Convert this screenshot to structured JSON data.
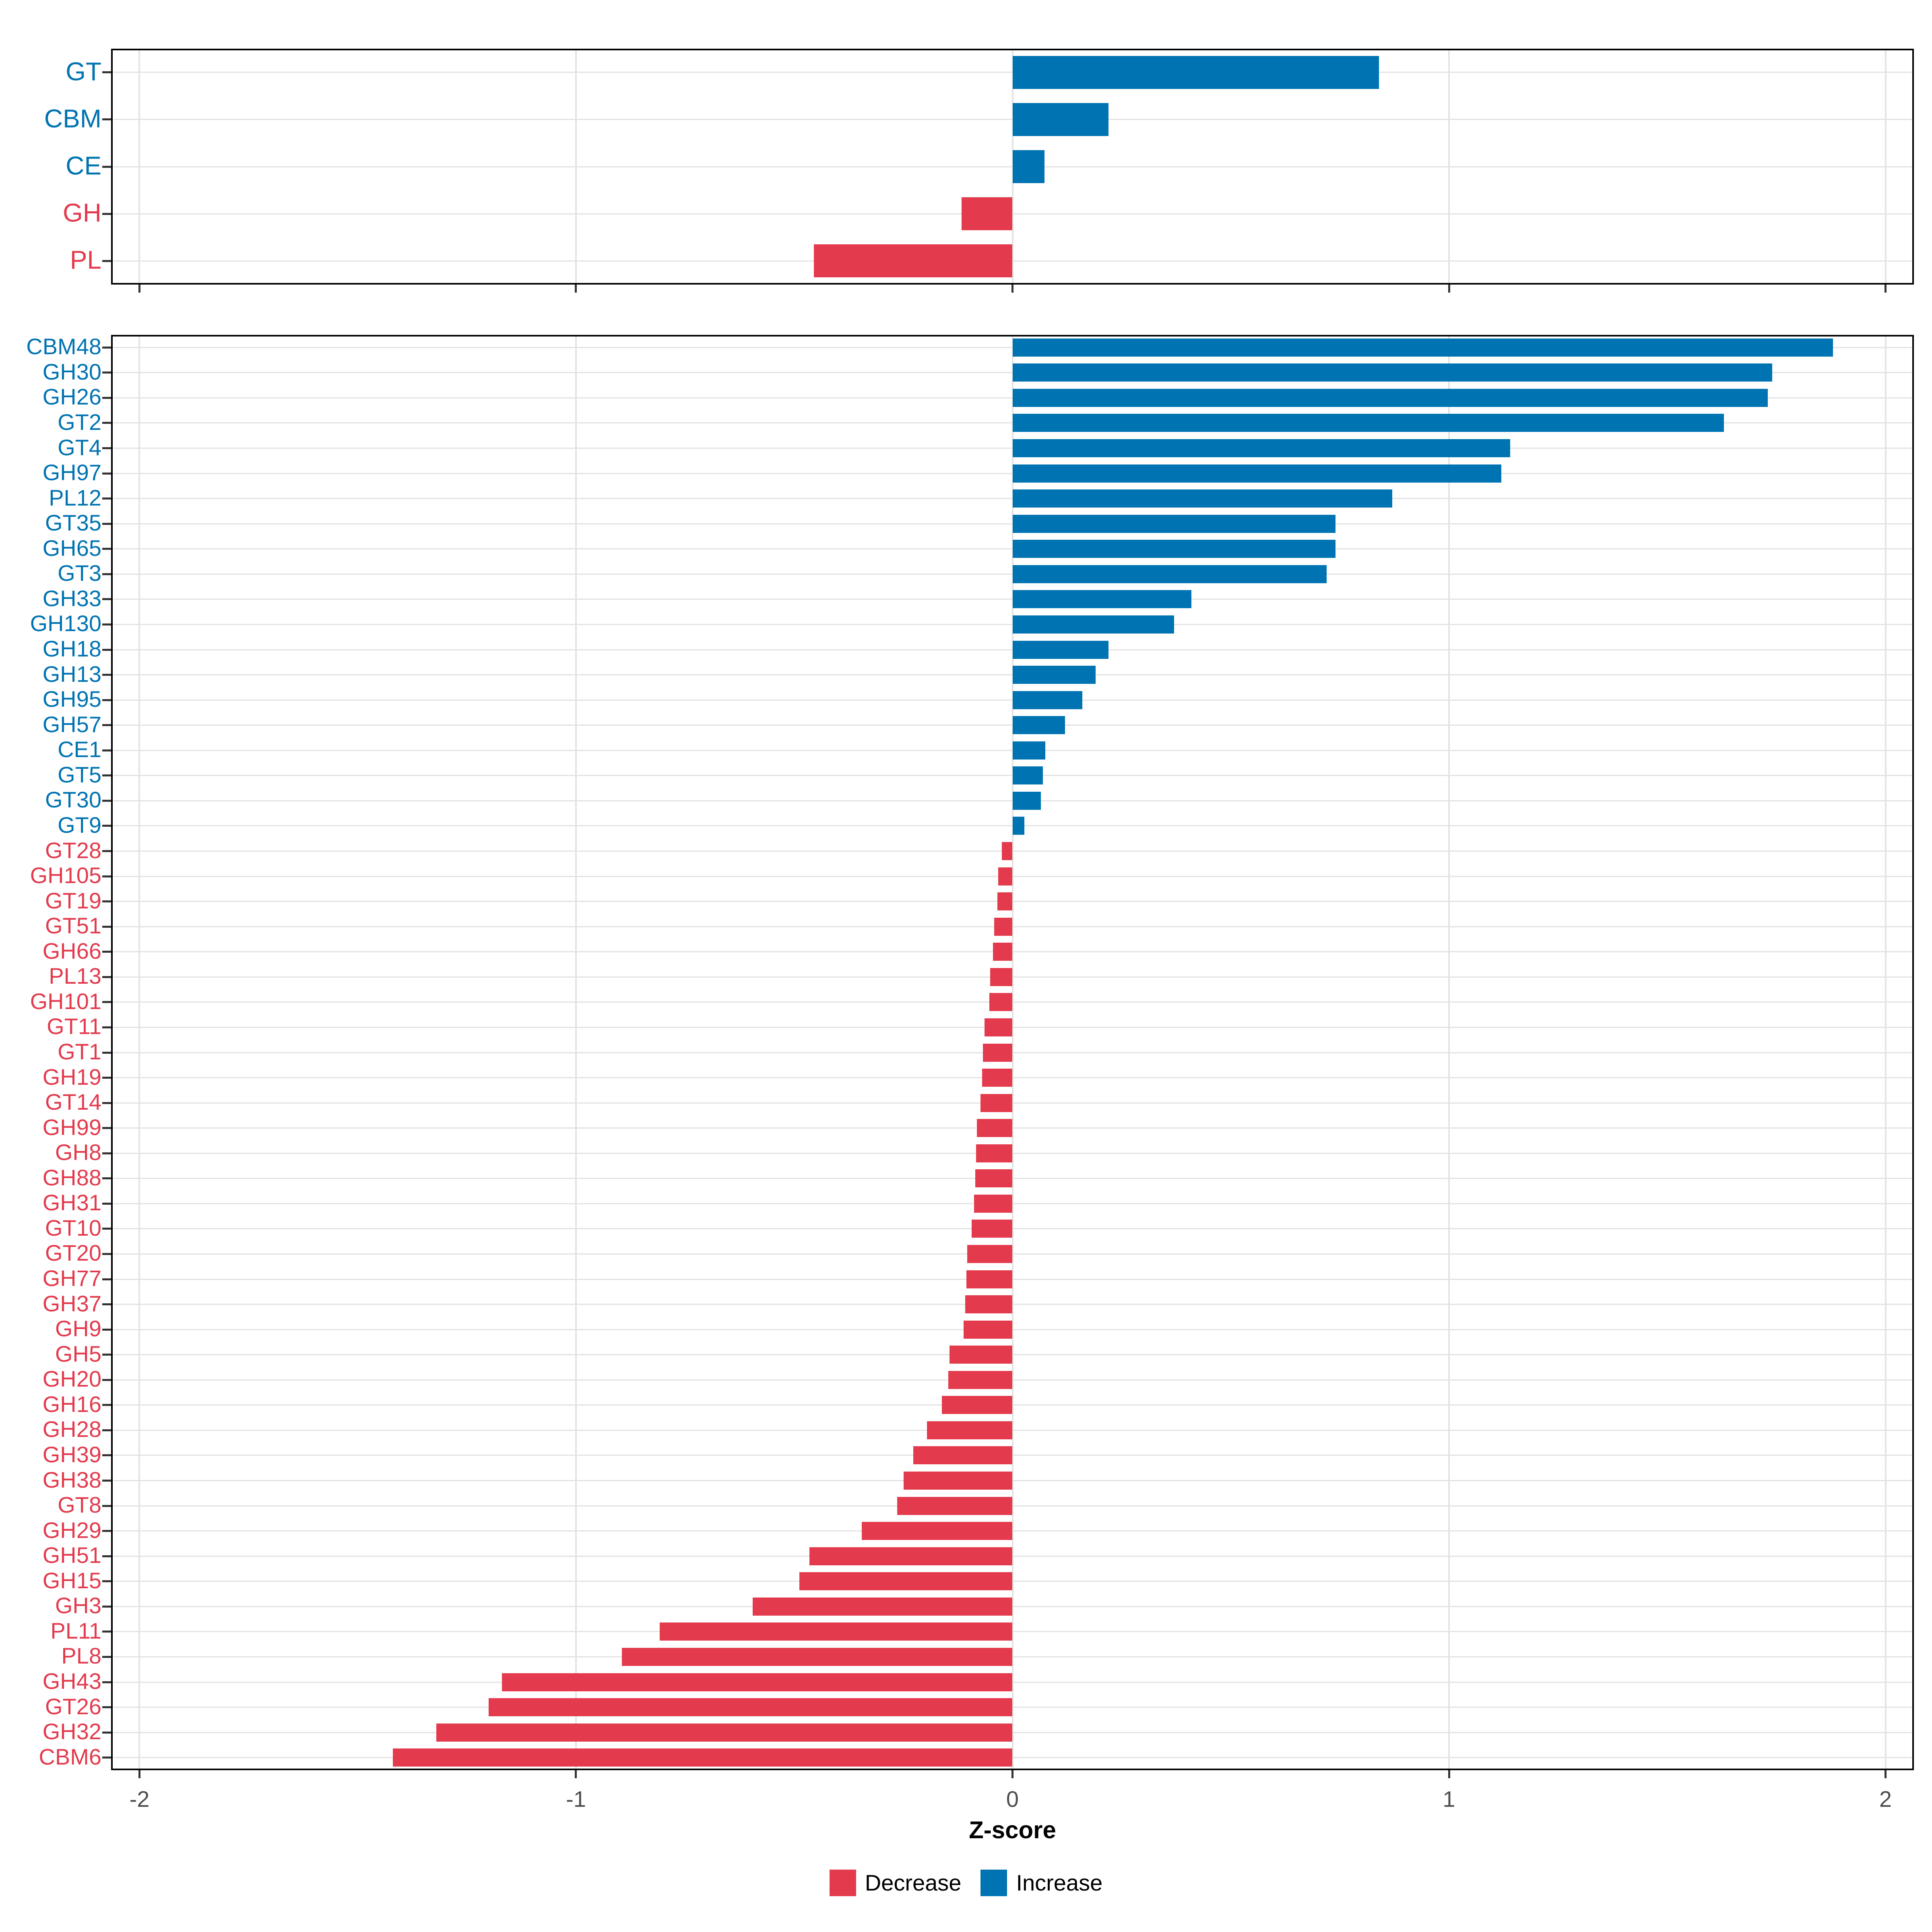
{
  "chart_data": {
    "type": "bar",
    "orientation": "horizontal",
    "title": "",
    "xlabel": "Z-score",
    "ylabel": "",
    "x_ticks": [
      -2,
      -1,
      0,
      1,
      2
    ],
    "x_tick_labels": [
      "-2",
      "-1",
      "0",
      "1",
      "2"
    ],
    "x_range": [
      -2.065,
      2.065
    ],
    "grid": true,
    "legend_position": "bottom",
    "legend": [
      {
        "label": "Decrease",
        "color": "#E33B4D"
      },
      {
        "label": "Increase",
        "color": "#0073B2"
      }
    ],
    "panels": [
      {
        "name": "cazyme-class-summary",
        "categories": [
          "GT",
          "CBM",
          "CE",
          "GH",
          "PL"
        ],
        "values": [
          0.84,
          0.22,
          0.073,
          -0.117,
          -0.455
        ]
      },
      {
        "name": "cazyme-family-detail",
        "categories": [
          "CBM48",
          "GH30",
          "GH26",
          "GT2",
          "GT4",
          "GH97",
          "PL12",
          "GT35",
          "GH65",
          "GT3",
          "GH33",
          "GH130",
          "GH18",
          "GH13",
          "GH95",
          "GH57",
          "CE1",
          "GT5",
          "GT30",
          "GT9",
          "GT28",
          "GH105",
          "GT19",
          "GT51",
          "GH66",
          "PL13",
          "GH101",
          "GT11",
          "GT1",
          "GH19",
          "GT14",
          "GH99",
          "GH8",
          "GH88",
          "GH31",
          "GT10",
          "GT20",
          "GH77",
          "GH37",
          "GH9",
          "GH5",
          "GH20",
          "GH16",
          "GH28",
          "GH39",
          "GH38",
          "GT8",
          "GH29",
          "GH51",
          "GH15",
          "GH3",
          "PL11",
          "PL8",
          "GH43",
          "GT26",
          "GH32",
          "CBM6"
        ],
        "values": [
          1.88,
          1.74,
          1.73,
          1.63,
          1.14,
          1.12,
          0.87,
          0.74,
          0.74,
          0.72,
          0.41,
          0.37,
          0.22,
          0.19,
          0.16,
          0.12,
          0.075,
          0.07,
          0.065,
          0.027,
          -0.024,
          -0.033,
          -0.035,
          -0.042,
          -0.045,
          -0.051,
          -0.053,
          -0.064,
          -0.068,
          -0.07,
          -0.073,
          -0.082,
          -0.083,
          -0.085,
          -0.088,
          -0.094,
          -0.104,
          -0.106,
          -0.108,
          -0.112,
          -0.144,
          -0.147,
          -0.162,
          -0.196,
          -0.227,
          -0.249,
          -0.264,
          -0.345,
          -0.465,
          -0.488,
          -0.595,
          -0.808,
          -0.895,
          -1.17,
          -1.2,
          -1.32,
          -1.42
        ]
      }
    ]
  },
  "colors": {
    "increase": "#0073B2",
    "decrease": "#E33B4D",
    "grid": "#E3E3E3",
    "panel_border": "#000000",
    "tick": "#333333",
    "tick_label": "#4D4D4D",
    "background": "#FFFFFF"
  }
}
